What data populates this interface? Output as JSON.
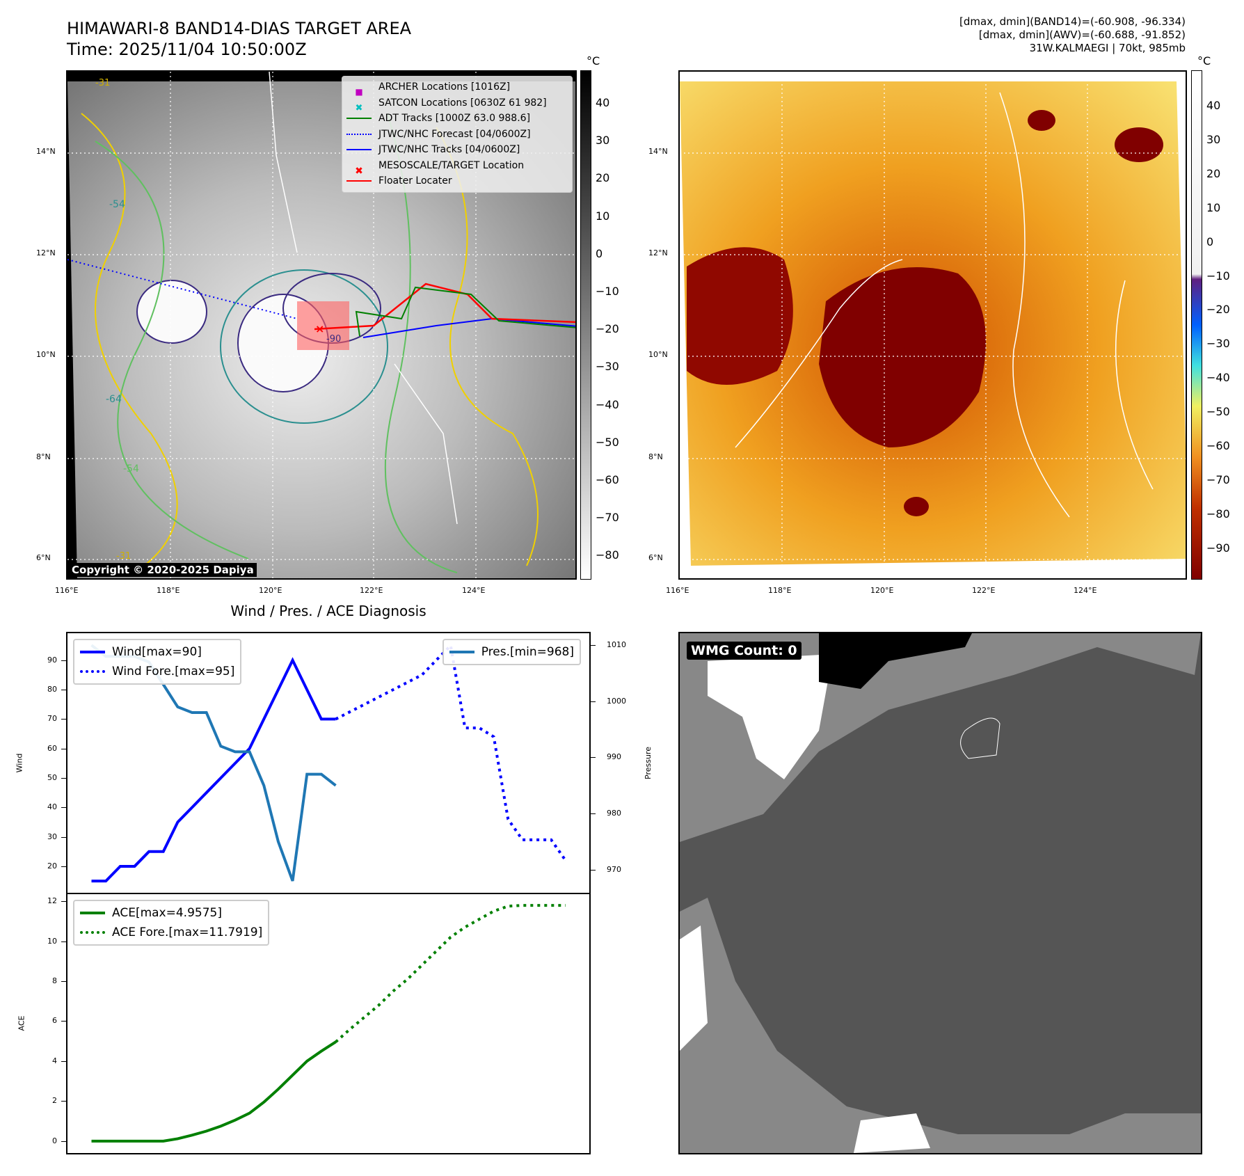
{
  "header": {
    "title": "HIMAWARI-8 BAND14-DIAS TARGET AREA",
    "time": "Time: 2025/11/04 10:50:00Z",
    "info_line1": "[dmax, dmin](BAND14)=(-60.908, -96.334)",
    "info_line2": "[dmax, dmin](AWV)=(-60.688, -91.852)",
    "info_line3": "31W.KALMAEGI | 70kt, 985mb"
  },
  "map": {
    "lat_labels": [
      "14°N",
      "12°N",
      "10°N",
      "8°N",
      "6°N"
    ],
    "lon_labels": [
      "116°E",
      "118°E",
      "120°E",
      "122°E",
      "124°E"
    ],
    "unit": "°C",
    "colorbar_left_ticks": [
      "40",
      "30",
      "20",
      "10",
      "0",
      "−10",
      "−20",
      "−30",
      "−40",
      "−50",
      "−60",
      "−70",
      "−80"
    ],
    "colorbar_right_ticks": [
      "40",
      "30",
      "20",
      "10",
      "0",
      "−10",
      "−20",
      "−30",
      "−40",
      "−50",
      "−60",
      "−70",
      "−80",
      "−90"
    ],
    "contour_labels": [
      "-31",
      "-54",
      "-64",
      "-54",
      "-31",
      "-90"
    ],
    "copyright": "Copyright © 2020-2025 Dapiya",
    "legend": [
      {
        "label": "ARCHER Locations [1016Z]",
        "color": "#c000c0"
      },
      {
        "label": "SATCON Locations [0630Z 61 982]",
        "color": "#00bfbf"
      },
      {
        "label": "ADT Tracks [1000Z 63.0 988.6]",
        "color": "#008000"
      },
      {
        "label": "JTWC/NHC Forecast [04/0600Z]",
        "color": "#0000ff"
      },
      {
        "label": "JTWC/NHC Tracks [04/0600Z]",
        "color": "#0000ff"
      },
      {
        "label": "MESOSCALE/TARGET Location",
        "color": "#ff0000"
      },
      {
        "label": "Floater Locater",
        "color": "#ff0000"
      }
    ]
  },
  "wmg": {
    "label": "WMG Count: 0"
  },
  "chart_data": [
    {
      "type": "line",
      "title": "Wind / Pres. / ACE Diagnosis",
      "ylabel": "Wind",
      "y2label": "Pressure",
      "ylim": [
        13,
        98
      ],
      "y2lim": [
        966,
        1012
      ],
      "yticks": [
        20,
        30,
        40,
        50,
        60,
        70,
        80,
        90
      ],
      "y2ticks": [
        970,
        980,
        990,
        1000,
        1010
      ],
      "series": [
        {
          "name": "Wind[max=90]",
          "style": "solid",
          "color": "#0000ff",
          "x": [
            0,
            1,
            2,
            3,
            4,
            5,
            6,
            7,
            8,
            9,
            10,
            11,
            12,
            13,
            14,
            15,
            16,
            17
          ],
          "values": [
            15,
            15,
            20,
            20,
            25,
            25,
            35,
            40,
            45,
            50,
            55,
            60,
            70,
            80,
            90,
            80,
            70,
            70
          ]
        },
        {
          "name": "Wind Fore.[max=95]",
          "style": "dotted",
          "color": "#0000ff",
          "x": [
            17,
            18,
            19,
            20,
            21,
            22,
            23,
            24,
            25,
            26,
            27,
            28,
            29,
            30,
            31,
            32,
            33
          ],
          "values": [
            70,
            72.5,
            75,
            77.5,
            80,
            82.5,
            85,
            90,
            95,
            67,
            67,
            64,
            36,
            29,
            29,
            29,
            22
          ]
        },
        {
          "name": "Pres.[min=968]",
          "style": "solid",
          "color": "#1f77b4",
          "axis": "right",
          "x": [
            0,
            1,
            2,
            3,
            4,
            5,
            6,
            7,
            8,
            9,
            10,
            11,
            12,
            13,
            14,
            15,
            16,
            17
          ],
          "values": [
            1010,
            1008,
            1008,
            1008,
            1007,
            1003,
            999,
            998,
            998,
            992,
            991,
            991,
            985,
            975,
            968,
            987,
            987,
            985
          ]
        }
      ]
    },
    {
      "type": "line",
      "ylabel": "ACE",
      "ylim": [
        -0.6,
        12.6
      ],
      "yticks": [
        0,
        2,
        4,
        6,
        8,
        10,
        12
      ],
      "series": [
        {
          "name": "ACE[max=4.9575]",
          "style": "solid",
          "color": "#008000",
          "x": [
            0,
            1,
            2,
            3,
            4,
            5,
            6,
            7,
            8,
            9,
            10,
            11,
            12,
            13,
            14,
            15,
            16,
            17
          ],
          "values": [
            0,
            0,
            0,
            0,
            0,
            0,
            0.12,
            0.3,
            0.5,
            0.75,
            1.05,
            1.4,
            1.95,
            2.6,
            3.3,
            4.0,
            4.5,
            4.96
          ]
        },
        {
          "name": "ACE Fore.[max=11.7919]",
          "style": "dotted",
          "color": "#008000",
          "x": [
            17,
            18,
            19,
            20,
            21,
            22,
            23,
            24,
            25,
            26,
            27,
            28,
            29,
            30,
            31,
            32,
            33
          ],
          "values": [
            4.96,
            5.6,
            6.2,
            6.8,
            7.5,
            8.1,
            8.8,
            9.5,
            10.2,
            10.7,
            11.1,
            11.5,
            11.75,
            11.79,
            11.79,
            11.79,
            11.79
          ]
        }
      ]
    }
  ]
}
